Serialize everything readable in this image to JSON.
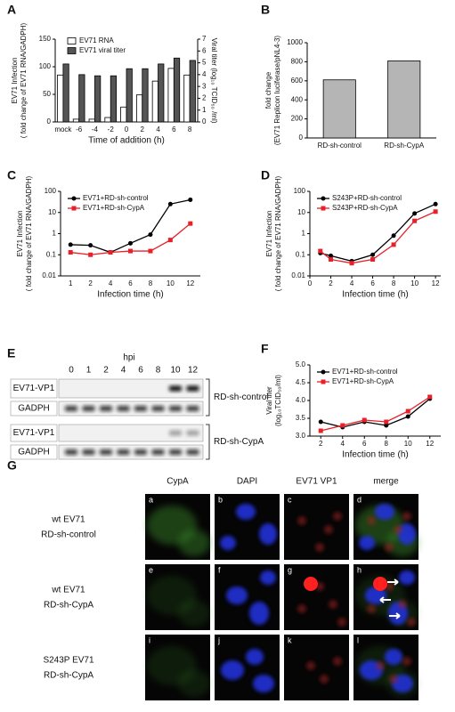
{
  "chart_data": [
    {
      "panel": "A",
      "type": "bar",
      "categories": [
        "mock",
        "-6",
        "-4",
        "-2",
        "0",
        "2",
        "4",
        "6",
        "8"
      ],
      "series": [
        {
          "name": "EV71 RNA",
          "color": "#ffffff",
          "values": [
            85,
            5,
            5,
            8,
            27,
            49,
            74,
            97,
            85
          ]
        },
        {
          "name": "EV71 viral titer",
          "color": "#555555",
          "axis": "y2",
          "values": [
            4.9,
            4.0,
            3.9,
            3.9,
            4.5,
            4.5,
            4.9,
            5.4,
            5.2
          ]
        }
      ],
      "ylim": [
        0,
        150
      ],
      "yticks": [
        0,
        50,
        100,
        150
      ],
      "y2lim": [
        0,
        7
      ],
      "y2ticks": [
        0,
        1,
        2,
        3,
        4,
        5,
        6,
        7
      ],
      "xlabel": "Time of addition (h)",
      "ylabel": [
        "EV71 Infection",
        "( fold change of EV71 RNA/GADPH)"
      ],
      "y2label": "Viral titer (log₁₀ TCID₅₀ /ml)",
      "legend": "upper left"
    },
    {
      "panel": "B",
      "type": "bar",
      "categories": [
        "RD-sh-control",
        "RD-sh-CypA"
      ],
      "values": [
        610,
        810
      ],
      "color": "#b5b5b5",
      "ylim": [
        0,
        1000
      ],
      "yticks": [
        0,
        200,
        400,
        600,
        800,
        1000
      ],
      "ylabel": [
        "fold change",
        "(EV71 Replicon luciferase/pNL4-3)"
      ]
    },
    {
      "panel": "C",
      "type": "line",
      "log": true,
      "categories": [
        "1",
        "2",
        "4",
        "6",
        "8",
        "10",
        "12"
      ],
      "series": [
        {
          "name": "EV71+RD-sh-control",
          "color": "#000000",
          "marker": "circle",
          "values": [
            0.3,
            0.28,
            0.13,
            0.35,
            0.9,
            25,
            40
          ]
        },
        {
          "name": "EV71+RD-sh-CypA",
          "color": "#e8202a",
          "marker": "square",
          "values": [
            0.13,
            0.1,
            0.13,
            0.15,
            0.15,
            0.5,
            3
          ]
        }
      ],
      "ylim": [
        0.01,
        100
      ],
      "yticks": [
        0.01,
        0.1,
        1,
        10,
        100
      ],
      "xlabel": "Infection time (h)",
      "ylabel": [
        "EV71 Infection",
        "( fold change of EV71 RNA/GADPH)"
      ],
      "legend": "upper left"
    },
    {
      "panel": "D",
      "type": "line",
      "log": true,
      "x": [
        1,
        2,
        4,
        6,
        8,
        10,
        12
      ],
      "xlim": [
        0,
        12.5
      ],
      "xticks": [
        0,
        2,
        4,
        6,
        8,
        10,
        12
      ],
      "series": [
        {
          "name": "S243P+RD-sh-control",
          "color": "#000000",
          "marker": "circle",
          "values": [
            0.12,
            0.09,
            0.05,
            0.1,
            0.8,
            9,
            25
          ]
        },
        {
          "name": "S243P+RD-sh-CypA",
          "color": "#e8202a",
          "marker": "square",
          "values": [
            0.15,
            0.06,
            0.04,
            0.06,
            0.3,
            4,
            11
          ]
        }
      ],
      "ylim": [
        0.01,
        100
      ],
      "yticks": [
        0.01,
        0.1,
        1,
        10,
        100
      ],
      "xlabel": "Infection time (h)",
      "ylabel": [
        "EV71 Infection",
        "( fold change of EV71 RNA/GADPH)"
      ],
      "legend": "upper left"
    },
    {
      "panel": "F",
      "type": "line",
      "x": [
        2,
        4,
        6,
        8,
        10,
        12
      ],
      "xlim": [
        1,
        13
      ],
      "xticks": [
        2,
        4,
        6,
        8,
        10,
        12
      ],
      "series": [
        {
          "name": "EV71+RD-sh-control",
          "color": "#000000",
          "marker": "circle",
          "values": [
            3.4,
            3.25,
            3.4,
            3.3,
            3.55,
            4.05
          ]
        },
        {
          "name": "EV71+RD-sh-CypA",
          "color": "#e8202a",
          "marker": "square",
          "values": [
            3.15,
            3.3,
            3.45,
            3.4,
            3.7,
            4.1
          ]
        }
      ],
      "ylim": [
        3,
        5
      ],
      "yticks": [
        {
          "value": 3,
          "label": "3.0"
        },
        3.5,
        {
          "value": 4,
          "label": "4.0"
        },
        4.5,
        {
          "value": 5,
          "label": "5.0"
        }
      ],
      "xlabel": "Infection time (h)",
      "ylabel": [
        "Viral titer",
        "(log₁₀TCID₅₀/ml)"
      ],
      "legend": "upper left"
    }
  ],
  "blot": {
    "panel": "E",
    "title": "hpi",
    "lanes": [
      "0",
      "1",
      "2",
      "4",
      "6",
      "8",
      "10",
      "12"
    ],
    "rows": [
      "EV71-VP1",
      "GADPH",
      "EV71-VP1",
      "GADPH"
    ],
    "groups": [
      "RD-sh-control",
      "RD-sh-CypA"
    ]
  },
  "microscopy": {
    "panel": "G",
    "columns": [
      "CypA",
      "DAPI",
      "EV71 VP1",
      "merge"
    ],
    "rows": [
      [
        "wt EV71",
        "RD-sh-control"
      ],
      [
        "wt EV71",
        "RD-sh-CypA"
      ],
      [
        "S243P EV71",
        "RD-sh-CypA"
      ]
    ],
    "cells": [
      "a",
      "b",
      "c",
      "d",
      "e",
      "f",
      "g",
      "h",
      "i",
      "j",
      "k",
      "l"
    ]
  }
}
